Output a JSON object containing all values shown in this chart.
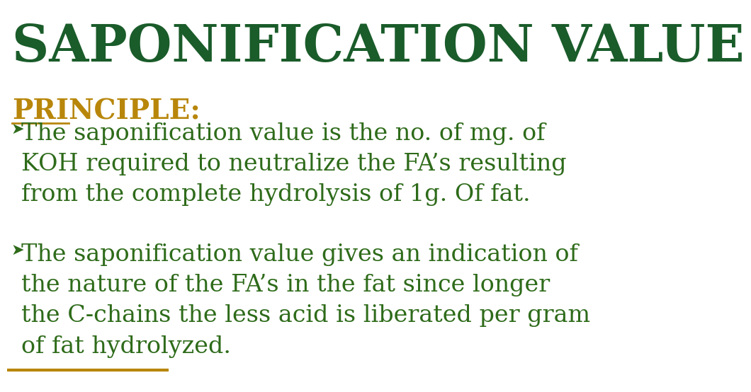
{
  "title": "SAPONIFICATION VALUE",
  "title_color": "#1a5c2a",
  "title_fontsize": 52,
  "bg_color": "#ffffff",
  "principle_label": "PRINCIPLE:",
  "principle_color": "#b8860b",
  "principle_fontsize": 28,
  "bullet_color": "#2e6b1a",
  "bullet_fontsize": 24,
  "bullet1_lines": [
    "The saponification value is the no. of mg. of",
    "KOH required to neutralize the FA’s resulting",
    "from the complete hydrolysis of 1g. Of fat."
  ],
  "bullet2_lines": [
    "The saponification value gives an indication of",
    "the nature of the FA’s in the fat since longer",
    "the C-chains the less acid is liberated per gram",
    "of fat hydrolyzed."
  ],
  "bottom_line_color": "#b8860b",
  "text_color": "#2e6b1a"
}
